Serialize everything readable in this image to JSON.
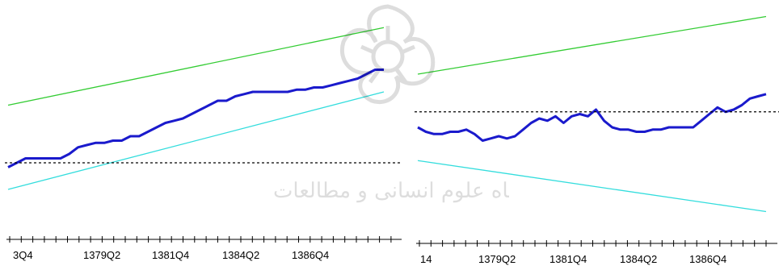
{
  "chart_data": [
    {
      "type": "line",
      "tick_labels": [
        "3Q4",
        "1379Q2",
        "1381Q4",
        "1384Q2",
        "1386Q4"
      ],
      "n_points": 44,
      "ylim": [
        0,
        100
      ],
      "series": [
        {
          "color": "#1a1acc",
          "values": [
            30,
            32,
            34,
            34,
            34,
            34,
            34,
            36,
            39,
            40,
            41,
            41,
            42,
            42,
            44,
            44,
            46,
            48,
            50,
            51,
            52,
            54,
            56,
            58,
            60,
            60,
            62,
            63,
            64,
            64,
            64,
            64,
            64,
            65,
            65,
            66,
            66,
            67,
            68,
            69,
            70,
            72,
            74,
            74
          ]
        },
        {
          "color": "#33cc33",
          "start": 58,
          "end": 93
        },
        {
          "color": "#33dddd",
          "start": 20,
          "end": 64
        },
        {
          "color": "#000000",
          "dashed": true,
          "value": 32
        }
      ]
    },
    {
      "type": "line",
      "tick_labels": [
        "14",
        "1379Q2",
        "1381Q4",
        "1384Q2",
        "1386Q4"
      ],
      "n_points": 44,
      "ylim": [
        0,
        100
      ],
      "series": [
        {
          "color": "#1a1acc",
          "values": [
            48,
            46,
            45,
            45,
            46,
            46,
            47,
            45,
            42,
            43,
            44,
            43,
            44,
            47,
            50,
            52,
            51,
            53,
            50,
            53,
            54,
            53,
            56,
            51,
            48,
            47,
            47,
            46,
            46,
            47,
            47,
            48,
            48,
            48,
            48,
            51,
            54,
            57,
            55,
            56,
            58,
            61,
            62,
            63
          ]
        },
        {
          "color": "#33cc33",
          "start": 72,
          "end": 98
        },
        {
          "color": "#33dddd",
          "start": 33,
          "end": 10
        },
        {
          "color": "#000000",
          "dashed": true,
          "value": 55
        }
      ]
    }
  ],
  "watermark": {
    "icon": "rosette-logo",
    "text": "پژوهشگاه علوم انسانی و مطالعات فرهنگی"
  }
}
